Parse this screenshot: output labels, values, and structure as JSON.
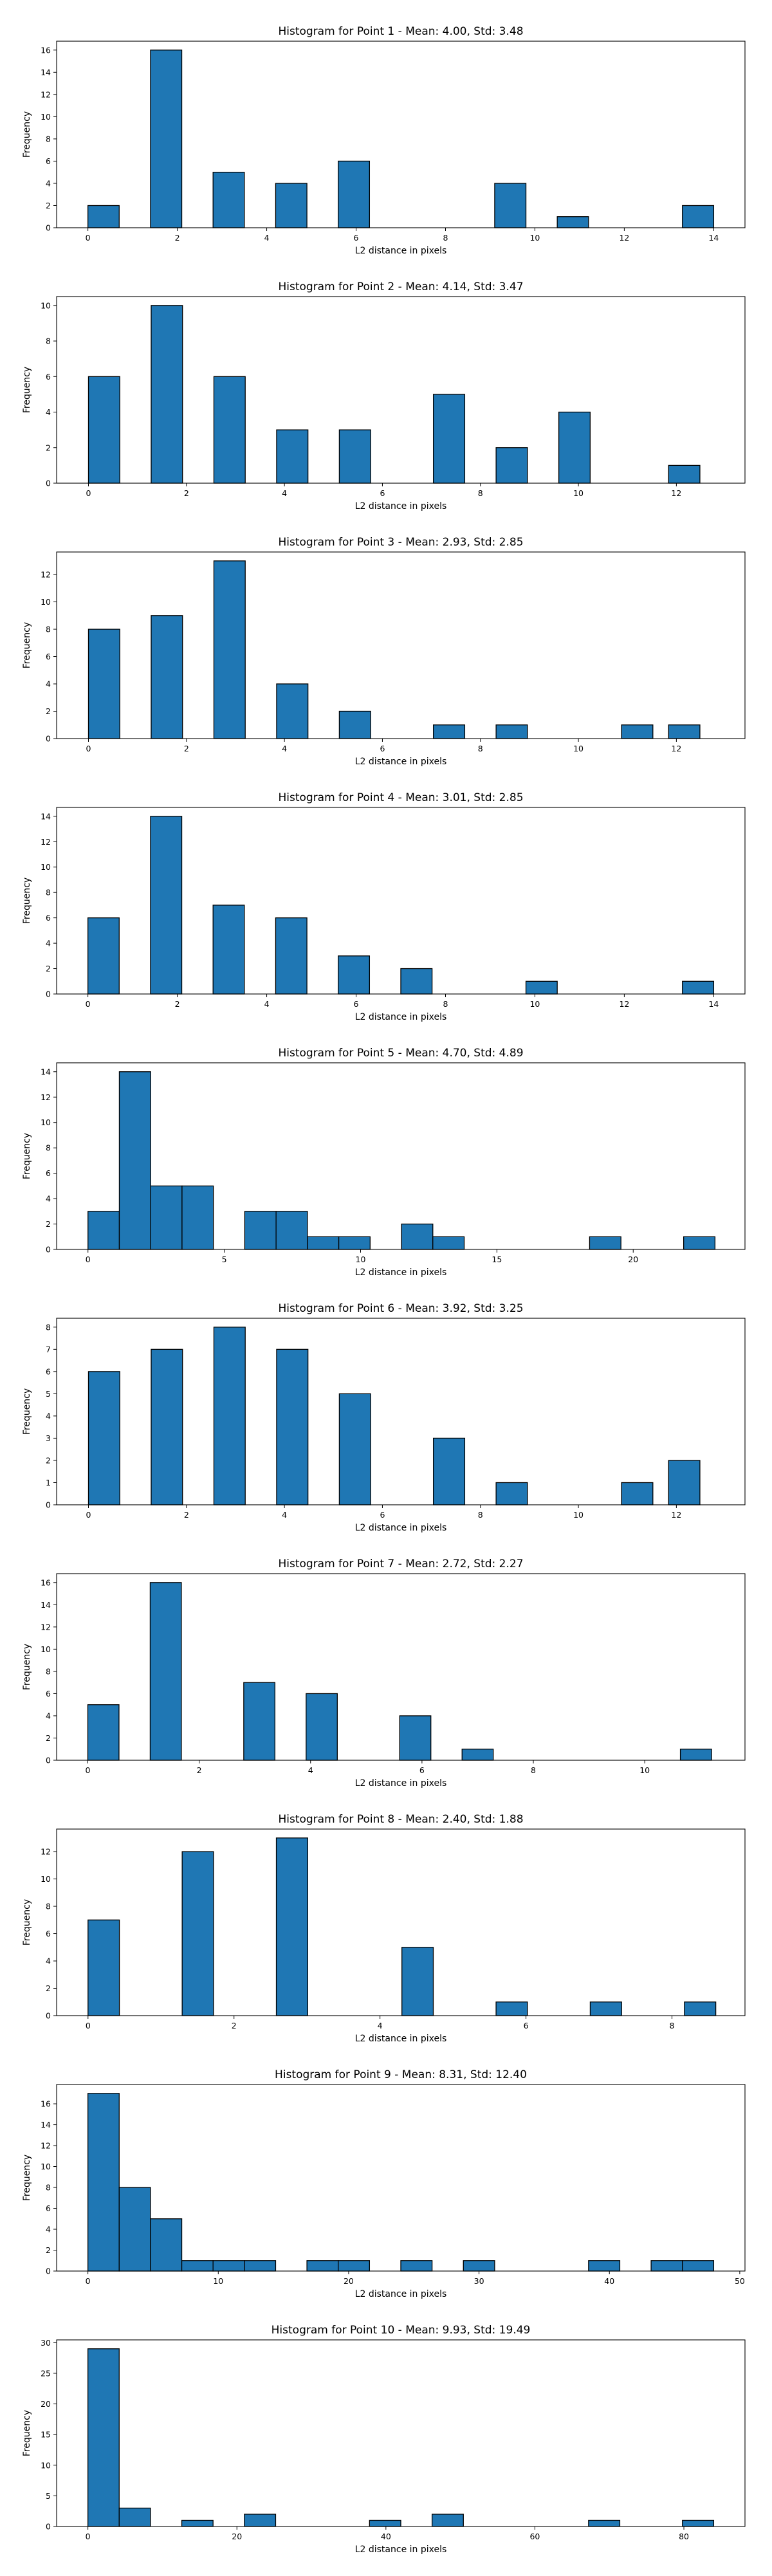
{
  "chart_data": [
    {
      "type": "bar",
      "title": "Histogram for Point 1 - Mean: 4.00, Std: 3.48",
      "xlabel": "L2 distance in pixels",
      "ylabel": "Frequency",
      "xlim": [
        -0.7,
        14.7
      ],
      "ylim": [
        0,
        16.8
      ],
      "xticks": [
        0,
        2,
        4,
        6,
        8,
        10,
        12,
        14
      ],
      "yticks": [
        0,
        2,
        4,
        6,
        8,
        10,
        12,
        14,
        16
      ],
      "bins": [
        [
          0,
          0.7,
          2
        ],
        [
          1.4,
          2.1,
          16
        ],
        [
          2.8,
          3.5,
          5
        ],
        [
          4.2,
          4.9,
          4
        ],
        [
          5.6,
          6.3,
          6
        ],
        [
          9.1,
          9.8,
          4
        ],
        [
          10.5,
          11.2,
          1
        ],
        [
          13.3,
          14.0,
          2
        ]
      ],
      "bar_color": "#1f77b4"
    },
    {
      "type": "bar",
      "title": "Histogram for Point 2 - Mean: 4.14, Std: 3.47",
      "xlabel": "L2 distance in pixels",
      "ylabel": "Frequency",
      "xlim": [
        -0.65,
        13.4
      ],
      "ylim": [
        0,
        10.5
      ],
      "xticks": [
        0,
        2,
        4,
        6,
        8,
        10,
        12
      ],
      "yticks": [
        0,
        2,
        4,
        6,
        8,
        10
      ],
      "bins": [
        [
          0,
          0.64,
          6
        ],
        [
          1.28,
          1.92,
          10
        ],
        [
          2.56,
          3.2,
          6
        ],
        [
          3.84,
          4.48,
          3
        ],
        [
          5.12,
          5.76,
          3
        ],
        [
          7.04,
          7.68,
          5
        ],
        [
          8.32,
          8.96,
          2
        ],
        [
          9.6,
          10.24,
          4
        ],
        [
          11.84,
          12.48,
          1
        ]
      ],
      "bar_color": "#1f77b4"
    },
    {
      "type": "bar",
      "title": "Histogram for Point 3 - Mean: 2.93, Std: 2.85",
      "xlabel": "L2 distance in pixels",
      "ylabel": "Frequency",
      "xlim": [
        -0.65,
        13.4
      ],
      "ylim": [
        0,
        13.65
      ],
      "xticks": [
        0,
        2,
        4,
        6,
        8,
        10,
        12
      ],
      "yticks": [
        0,
        2,
        4,
        6,
        8,
        10,
        12
      ],
      "bins": [
        [
          0,
          0.64,
          8
        ],
        [
          1.28,
          1.92,
          9
        ],
        [
          2.56,
          3.2,
          13
        ],
        [
          3.84,
          4.48,
          4
        ],
        [
          5.12,
          5.76,
          2
        ],
        [
          7.04,
          7.68,
          1
        ],
        [
          8.32,
          8.96,
          1
        ],
        [
          10.88,
          11.52,
          1
        ],
        [
          11.84,
          12.48,
          1
        ]
      ],
      "bar_color": "#1f77b4"
    },
    {
      "type": "bar",
      "title": "Histogram for Point 4 - Mean: 3.01, Std: 2.85",
      "xlabel": "L2 distance in pixels",
      "ylabel": "Frequency",
      "xlim": [
        -0.7,
        14.7
      ],
      "ylim": [
        0,
        14.7
      ],
      "xticks": [
        0,
        2,
        4,
        6,
        8,
        10,
        12,
        14
      ],
      "yticks": [
        0,
        2,
        4,
        6,
        8,
        10,
        12,
        14
      ],
      "bins": [
        [
          0,
          0.7,
          6
        ],
        [
          1.4,
          2.1,
          14
        ],
        [
          2.8,
          3.5,
          7
        ],
        [
          4.2,
          4.9,
          6
        ],
        [
          5.6,
          6.3,
          3
        ],
        [
          7.0,
          7.7,
          2
        ],
        [
          9.8,
          10.5,
          1
        ],
        [
          13.3,
          14.0,
          1
        ]
      ],
      "bar_color": "#1f77b4"
    },
    {
      "type": "bar",
      "title": "Histogram for Point 5 - Mean: 4.70, Std: 4.89",
      "xlabel": "L2 distance in pixels",
      "ylabel": "Frequency",
      "xlim": [
        -1.15,
        24.1
      ],
      "ylim": [
        0,
        14.7
      ],
      "xticks": [
        0,
        5,
        10,
        15,
        20
      ],
      "yticks": [
        0,
        2,
        4,
        6,
        8,
        10,
        12,
        14
      ],
      "bins": [
        [
          0,
          1.15,
          3
        ],
        [
          1.15,
          2.3,
          14
        ],
        [
          2.3,
          3.45,
          5
        ],
        [
          3.45,
          4.6,
          5
        ],
        [
          5.75,
          6.9,
          3
        ],
        [
          6.9,
          8.05,
          3
        ],
        [
          8.05,
          9.2,
          1
        ],
        [
          9.2,
          10.35,
          1
        ],
        [
          11.5,
          12.65,
          2
        ],
        [
          12.65,
          13.8,
          1
        ],
        [
          18.4,
          19.55,
          1
        ],
        [
          21.85,
          23.0,
          1
        ]
      ],
      "bar_color": "#1f77b4"
    },
    {
      "type": "bar",
      "title": "Histogram for Point 6 - Mean: 3.92, Std: 3.25",
      "xlabel": "L2 distance in pixels",
      "ylabel": "Frequency",
      "xlim": [
        -0.65,
        13.4
      ],
      "ylim": [
        0,
        8.4
      ],
      "xticks": [
        0,
        2,
        4,
        6,
        8,
        10,
        12
      ],
      "yticks": [
        0,
        1,
        2,
        3,
        4,
        5,
        6,
        7,
        8
      ],
      "bins": [
        [
          0,
          0.64,
          6
        ],
        [
          1.28,
          1.92,
          7
        ],
        [
          2.56,
          3.2,
          8
        ],
        [
          3.84,
          4.48,
          7
        ],
        [
          5.12,
          5.76,
          5
        ],
        [
          7.04,
          7.68,
          3
        ],
        [
          8.32,
          8.96,
          1
        ],
        [
          10.88,
          11.52,
          1
        ],
        [
          11.84,
          12.48,
          2
        ]
      ],
      "bar_color": "#1f77b4"
    },
    {
      "type": "bar",
      "title": "Histogram for Point 7 - Mean: 2.72, Std: 2.27",
      "xlabel": "L2 distance in pixels",
      "ylabel": "Frequency",
      "xlim": [
        -0.56,
        11.8
      ],
      "ylim": [
        0,
        16.8
      ],
      "xticks": [
        0,
        2,
        4,
        6,
        8,
        10
      ],
      "yticks": [
        0,
        2,
        4,
        6,
        8,
        10,
        12,
        14,
        16
      ],
      "bins": [
        [
          0,
          0.56,
          5
        ],
        [
          1.12,
          1.68,
          16
        ],
        [
          2.8,
          3.36,
          7
        ],
        [
          3.92,
          4.48,
          6
        ],
        [
          5.6,
          6.16,
          4
        ],
        [
          6.72,
          7.28,
          1
        ],
        [
          10.64,
          11.2,
          1
        ]
      ],
      "bar_color": "#1f77b4"
    },
    {
      "type": "bar",
      "title": "Histogram for Point 8 - Mean: 2.40, Std: 1.88",
      "xlabel": "L2 distance in pixels",
      "ylabel": "Frequency",
      "xlim": [
        -0.43,
        9.0
      ],
      "ylim": [
        0,
        13.65
      ],
      "xticks": [
        0,
        2,
        4,
        6,
        8
      ],
      "yticks": [
        0,
        2,
        4,
        6,
        8,
        10,
        12
      ],
      "bins": [
        [
          0,
          0.43,
          7
        ],
        [
          1.29,
          1.72,
          12
        ],
        [
          2.58,
          3.01,
          13
        ],
        [
          4.3,
          4.73,
          5
        ],
        [
          5.59,
          6.02,
          1
        ],
        [
          6.88,
          7.31,
          1
        ],
        [
          8.17,
          8.6,
          1
        ]
      ],
      "bar_color": "#1f77b4"
    },
    {
      "type": "bar",
      "title": "Histogram for Point 9 - Mean: 8.31, Std: 12.40",
      "xlabel": "L2 distance in pixels",
      "ylabel": "Frequency",
      "xlim": [
        -2.4,
        50.4
      ],
      "ylim": [
        0,
        17.85
      ],
      "xticks": [
        0,
        10,
        20,
        30,
        40,
        50
      ],
      "yticks": [
        0,
        2,
        4,
        6,
        8,
        10,
        12,
        14,
        16
      ],
      "bins": [
        [
          0,
          2.4,
          17
        ],
        [
          2.4,
          4.8,
          8
        ],
        [
          4.8,
          7.2,
          5
        ],
        [
          7.2,
          9.6,
          1
        ],
        [
          9.6,
          12.0,
          1
        ],
        [
          12.0,
          14.4,
          1
        ],
        [
          16.8,
          19.2,
          1
        ],
        [
          19.2,
          21.6,
          1
        ],
        [
          24.0,
          26.4,
          1
        ],
        [
          28.8,
          31.2,
          1
        ],
        [
          38.4,
          40.8,
          1
        ],
        [
          43.2,
          45.6,
          1
        ],
        [
          45.6,
          48.0,
          1
        ]
      ],
      "bar_color": "#1f77b4"
    },
    {
      "type": "bar",
      "title": "Histogram for Point 10 - Mean: 9.93, Std: 19.49",
      "xlabel": "L2 distance in pixels",
      "ylabel": "Frequency",
      "xlim": [
        -4.2,
        88.2
      ],
      "ylim": [
        0,
        30.45
      ],
      "xticks": [
        0,
        20,
        40,
        60,
        80
      ],
      "yticks": [
        0,
        5,
        10,
        15,
        20,
        25,
        30
      ],
      "bins": [
        [
          0,
          4.2,
          29
        ],
        [
          4.2,
          8.4,
          3
        ],
        [
          12.6,
          16.8,
          1
        ],
        [
          21.0,
          25.2,
          2
        ],
        [
          37.8,
          42.0,
          1
        ],
        [
          46.2,
          50.4,
          2
        ],
        [
          67.2,
          71.4,
          1
        ],
        [
          79.8,
          84.0,
          1
        ]
      ],
      "bar_color": "#1f77b4"
    }
  ]
}
